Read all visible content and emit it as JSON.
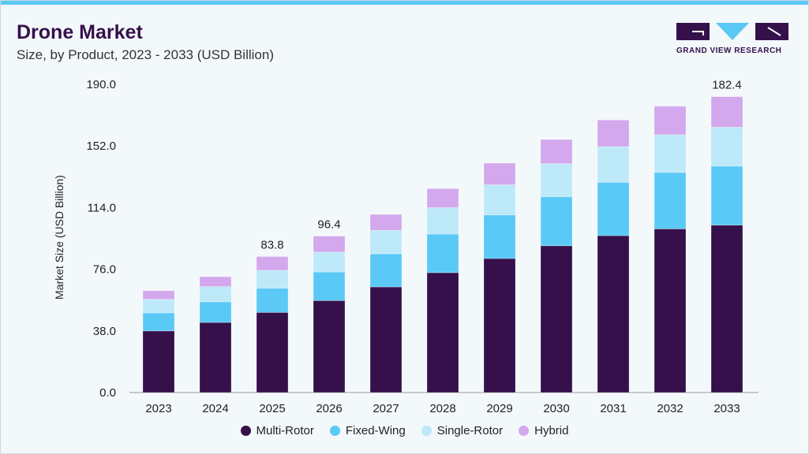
{
  "header": {
    "title": "Drone Market",
    "subtitle": "Size, by Product, 2023 - 2033 (USD Billion)",
    "logo_text": "GRAND VIEW RESEARCH"
  },
  "chart_data": {
    "type": "bar",
    "stacked": true,
    "title": "Drone Market",
    "subtitle": "Size, by Product, 2023 - 2033 (USD Billion)",
    "xlabel": "",
    "ylabel": "Market Size (USD Billion)",
    "ylim": [
      0,
      190
    ],
    "yticks": [
      "0.0",
      "38.0",
      "76.0",
      "114.0",
      "152.0",
      "190.0"
    ],
    "grid": false,
    "legend_position": "bottom",
    "categories": [
      "2023",
      "2024",
      "2025",
      "2026",
      "2027",
      "2028",
      "2029",
      "2030",
      "2031",
      "2032",
      "2033"
    ],
    "series": [
      {
        "name": "Multi-Rotor",
        "color": "#35104a",
        "values": [
          38.0,
          43.2,
          49.4,
          56.7,
          65.1,
          73.9,
          82.6,
          90.5,
          96.7,
          100.9,
          103.2
        ]
      },
      {
        "name": "Fixed-Wing",
        "color": "#5bc9f6",
        "values": [
          11.1,
          12.7,
          14.9,
          17.6,
          20.4,
          23.8,
          26.9,
          30.2,
          32.9,
          34.8,
          36.4
        ]
      },
      {
        "name": "Single-Rotor",
        "color": "#bde9f9",
        "values": [
          8.4,
          9.4,
          11.0,
          12.3,
          14.5,
          16.3,
          18.6,
          20.4,
          22.0,
          23.3,
          24.0
        ]
      },
      {
        "name": "Hybrid",
        "color": "#d3a8ec",
        "values": [
          5.3,
          6.1,
          8.5,
          9.8,
          9.8,
          11.7,
          13.3,
          14.9,
          16.4,
          17.5,
          18.8
        ]
      }
    ],
    "data_labels": {
      "2025": "83.8",
      "2026": "96.4",
      "2033": "182.4"
    }
  }
}
